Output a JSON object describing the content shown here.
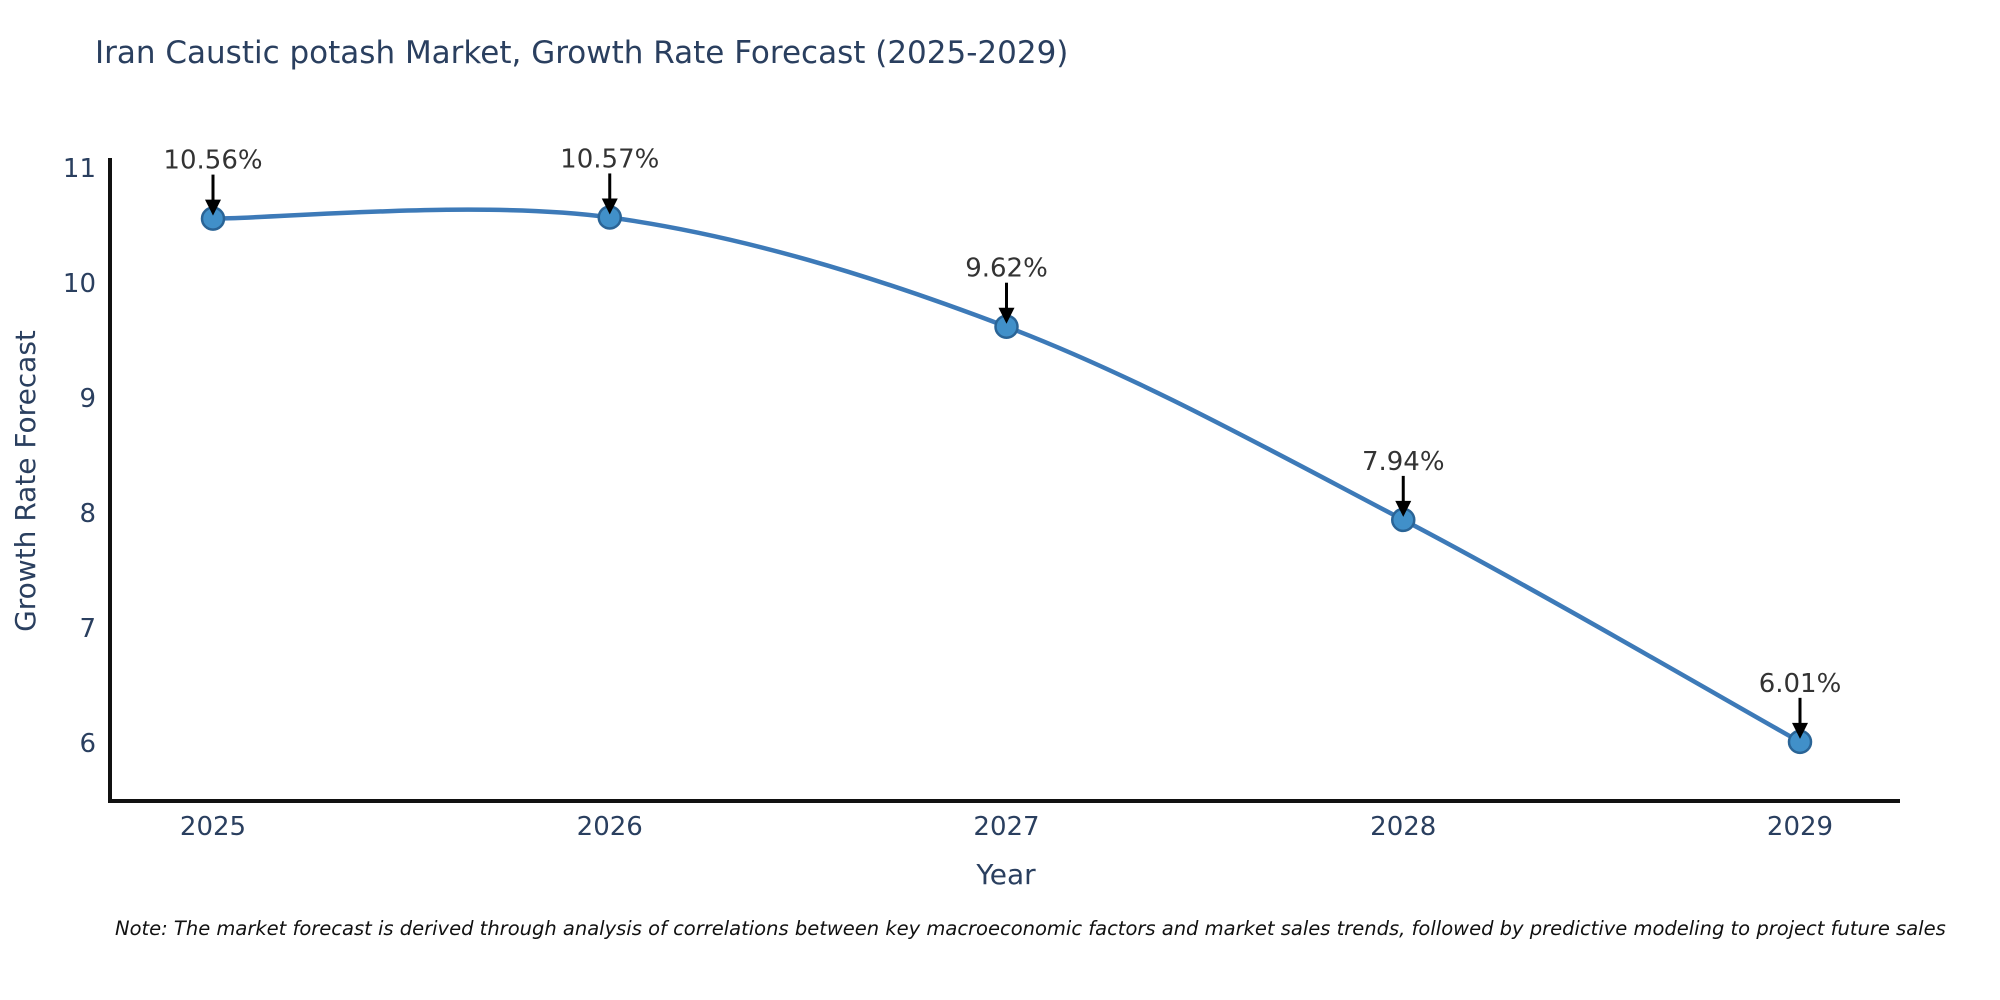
{
  "chart_data": {
    "type": "line",
    "title": "Iran Caustic potash Market, Growth Rate Forecast (2025-2029)",
    "xlabel": "Year",
    "ylabel": "Growth Rate Forecast",
    "x": [
      2025,
      2026,
      2027,
      2028,
      2029
    ],
    "series": [
      {
        "name": "Growth Rate Forecast",
        "values": [
          10.56,
          10.57,
          9.62,
          7.94,
          6.01
        ]
      }
    ],
    "point_labels": [
      "10.56%",
      "10.57%",
      "9.62%",
      "7.94%",
      "6.01%"
    ],
    "x_tick_labels": [
      "2025",
      "2026",
      "2027",
      "2028",
      "2029"
    ],
    "y_tick_values": [
      6,
      7,
      8,
      9,
      10,
      11
    ],
    "ylim": [
      5.49,
      11.07
    ],
    "line_shape": "spline",
    "grid": false,
    "legend_position": "none",
    "colors": {
      "line": "#3d7ab8",
      "marker_fill": "#4190c9",
      "marker_stroke": "#2a6496",
      "axis_line": "#111111",
      "axis_text": "#2a3f5f",
      "annotation_text": "#333333",
      "arrow": "#000000"
    },
    "note": "Note: The market forecast is derived through analysis of correlations between key macroeconomic factors and market sales trends, followed by predictive modeling to project future sales"
  }
}
